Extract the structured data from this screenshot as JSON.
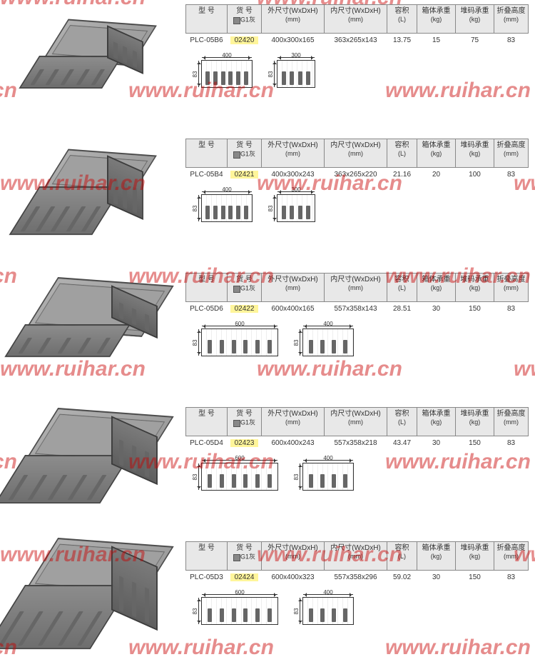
{
  "watermark_text": "www.ruihar.cn",
  "watermark_color": "rgba(200,0,0,0.45)",
  "headers": {
    "model": {
      "label": "型 号"
    },
    "code": {
      "label": "货 号",
      "color_label": "G1灰"
    },
    "outer": {
      "label": "外尺寸(WxDxH)",
      "unit": "(mm)"
    },
    "inner": {
      "label": "内尺寸(WxDxH)",
      "unit": "(mm)"
    },
    "volume": {
      "label": "容积",
      "unit": "(L)"
    },
    "body": {
      "label": "箱体承重",
      "unit": "(kg)"
    },
    "stack": {
      "label": "堆码承重",
      "unit": "(kg)"
    },
    "fold": {
      "label": "折叠高度",
      "unit": "(mm)"
    }
  },
  "products": [
    {
      "model": "PLC-05B6",
      "code": "02420",
      "outer": "400x300x165",
      "inner": "363x265x143",
      "volume": "13.75",
      "body": "15",
      "stack": "75",
      "fold": "83",
      "dim": {
        "outer_w": 400,
        "outer_d": 300,
        "outer_h": 165,
        "fold_h": 83
      },
      "highlight_code": true
    },
    {
      "model": "PLC-05B4",
      "code": "02421",
      "outer": "400x300x243",
      "inner": "363x265x220",
      "volume": "21.16",
      "body": "20",
      "stack": "100",
      "fold": "83",
      "dim": {
        "outer_w": 400,
        "outer_d": 300,
        "outer_h": 243,
        "fold_h": 83
      },
      "highlight_code": true
    },
    {
      "model": "PLC-05D6",
      "code": "02422",
      "outer": "600x400x165",
      "inner": "557x358x143",
      "volume": "28.51",
      "body": "30",
      "stack": "150",
      "fold": "83",
      "dim": {
        "outer_w": 600,
        "outer_d": 400,
        "outer_h": 165,
        "fold_h": 83
      },
      "highlight_code": true
    },
    {
      "model": "PLC-05D4",
      "code": "02423",
      "outer": "600x400x243",
      "inner": "557x358x218",
      "volume": "43.47",
      "body": "30",
      "stack": "150",
      "fold": "83",
      "dim": {
        "outer_w": 600,
        "outer_d": 400,
        "outer_h": 243,
        "fold_h": 83
      },
      "highlight_code": true
    },
    {
      "model": "PLC-05D3",
      "code": "02424",
      "outer": "600x400x323",
      "inner": "557x358x296",
      "volume": "59.02",
      "body": "30",
      "stack": "150",
      "fold": "83",
      "dim": {
        "outer_w": 600,
        "outer_d": 400,
        "outer_h": 323,
        "fold_h": 83
      },
      "highlight_code": true
    }
  ],
  "crate_colors": {
    "top": "#a8a8a8",
    "front": "#7a7a7a",
    "side": "#6a6a6a",
    "border": "#454545"
  },
  "highlight_color": "#fff59a",
  "header_bg": "#e8e8e8",
  "dim_scale": 0.18
}
